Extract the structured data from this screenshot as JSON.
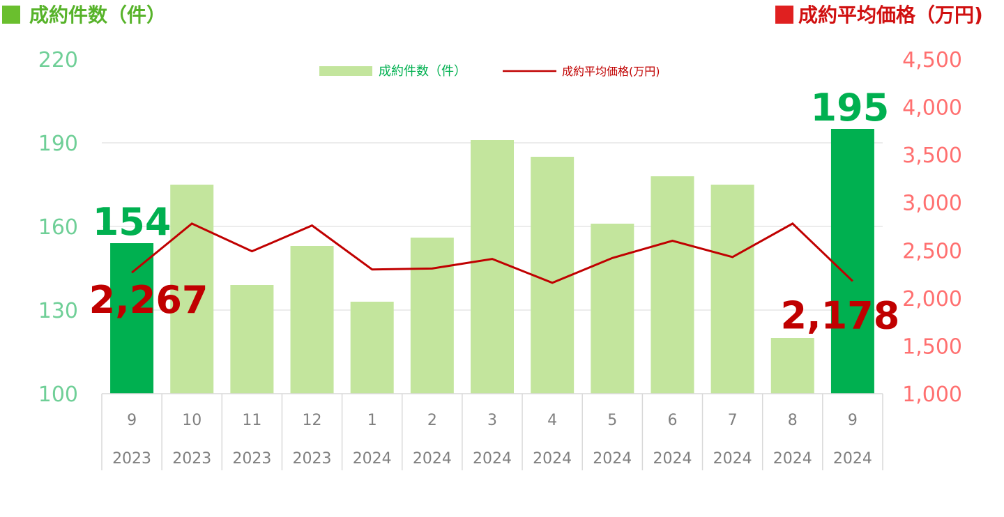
{
  "colors": {
    "bar_light": "#c3e59d",
    "bar_dark": "#00b050",
    "line": "#c00000",
    "left_axis": "#6fcf97",
    "right_axis": "#ff7070",
    "left_header_square": "#6abf2e",
    "right_header_square": "#e02020",
    "left_header_text": "#57b32a",
    "right_header_text": "#d01010",
    "grid": "#d9d9d9",
    "axis_label": "#7f7f7f",
    "legend_bar_text": "#00b050",
    "legend_line_text": "#c00000"
  },
  "chart_data": {
    "type": "bar",
    "headers": {
      "left": "成約件数（件）",
      "right": "成約平均価格（万円)"
    },
    "legend": {
      "bar_label": "成約件数（件）",
      "line_label": "成約平均価格(万円)"
    },
    "categories": [
      {
        "month": "9",
        "year": "2023"
      },
      {
        "month": "10",
        "year": "2023"
      },
      {
        "month": "11",
        "year": "2023"
      },
      {
        "month": "12",
        "year": "2023"
      },
      {
        "month": "1",
        "year": "2024"
      },
      {
        "month": "2",
        "year": "2024"
      },
      {
        "month": "3",
        "year": "2024"
      },
      {
        "month": "4",
        "year": "2024"
      },
      {
        "month": "5",
        "year": "2024"
      },
      {
        "month": "6",
        "year": "2024"
      },
      {
        "month": "7",
        "year": "2024"
      },
      {
        "month": "8",
        "year": "2024"
      },
      {
        "month": "9",
        "year": "2024"
      }
    ],
    "series": [
      {
        "name": "成約件数（件）",
        "type": "bar",
        "axis": "left",
        "values": [
          154,
          175,
          139,
          153,
          133,
          156,
          191,
          185,
          161,
          178,
          175,
          120,
          195
        ],
        "highlight": [
          true,
          false,
          false,
          false,
          false,
          false,
          false,
          false,
          false,
          false,
          false,
          false,
          true
        ]
      },
      {
        "name": "成約平均価格(万円)",
        "type": "line",
        "axis": "right",
        "values": [
          2267,
          2780,
          2490,
          2760,
          2300,
          2310,
          2410,
          2160,
          2420,
          2600,
          2430,
          2780,
          2178
        ]
      }
    ],
    "left_axis": {
      "min": 100,
      "max": 220,
      "ticks": [
        "100",
        "130",
        "160",
        "190",
        "220"
      ]
    },
    "right_axis": {
      "min": 1000,
      "max": 4500,
      "ticks": [
        "1,000",
        "1,500",
        "2,000",
        "2,500",
        "3,000",
        "3,500",
        "4,000",
        "4,500"
      ]
    },
    "grid": true,
    "callouts": {
      "first_count": "154",
      "last_count": "195",
      "first_price": "2,267",
      "last_price": "2,178"
    }
  }
}
